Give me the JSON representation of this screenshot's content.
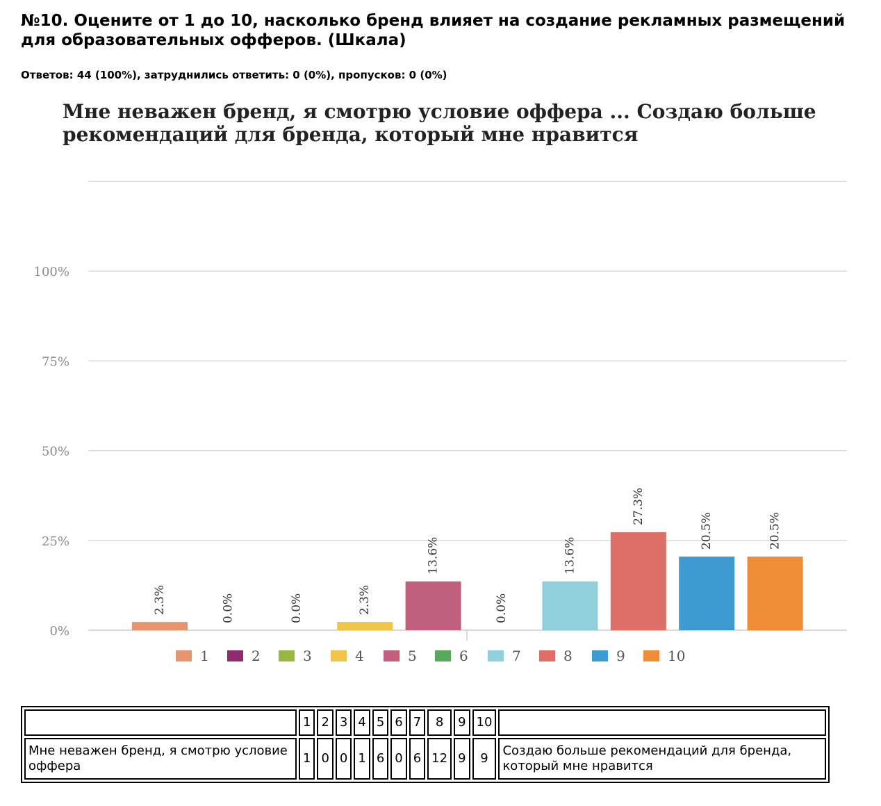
{
  "question": {
    "title": "№10. Оцените от 1 до 10, насколько бренд влияет на создание рекламных размещений для образовательных офферов. (Шкала)",
    "stats": "Ответов: 44 (100%), затруднились ответить: 0 (0%), пропусков: 0 (0%)"
  },
  "chart_data": {
    "type": "bar",
    "title": "Мне неважен бренд, я смотрю условие оффера ... Создаю больше рекомендаций для бренда, который мне нравится",
    "title_lines": [
      "Мне неважен бренд, я смотрю условие оффера ... Создаю больше",
      "рекомендаций для бренда, который мне нравится"
    ],
    "categories": [
      "1",
      "2",
      "3",
      "4",
      "5",
      "6",
      "7",
      "8",
      "9",
      "10"
    ],
    "values": [
      2.3,
      0.0,
      0.0,
      2.3,
      13.6,
      0.0,
      13.6,
      27.3,
      20.5,
      20.5
    ],
    "value_labels": [
      "2.3%",
      "0.0%",
      "0.0%",
      "2.3%",
      "13.6%",
      "0.0%",
      "13.6%",
      "27.3%",
      "20.5%",
      "20.5%"
    ],
    "colors": [
      "#e8956f",
      "#8e2a6e",
      "#96b83e",
      "#f0c446",
      "#c0607d",
      "#5aa85b",
      "#8fd0db",
      "#e06e68",
      "#3d9bd1",
      "#ef8c36"
    ],
    "yticks": [
      0,
      25,
      50,
      75,
      100
    ],
    "ytick_labels": [
      "0%",
      "25%",
      "50%",
      "75%",
      "100%"
    ],
    "ylim": [
      0,
      125
    ],
    "grid": true,
    "legend": "bottom",
    "xlabel": "",
    "ylabel": ""
  },
  "table": {
    "header": [
      "1",
      "2",
      "3",
      "4",
      "5",
      "6",
      "7",
      "8",
      "9",
      "10"
    ],
    "row_left": "Мне неважен бренд, я смотрю условие оффера",
    "counts": [
      "1",
      "0",
      "0",
      "1",
      "6",
      "0",
      "6",
      "12",
      "9",
      "9"
    ],
    "row_right": "Создаю больше рекомендаций для бренда, который мне нравится"
  }
}
